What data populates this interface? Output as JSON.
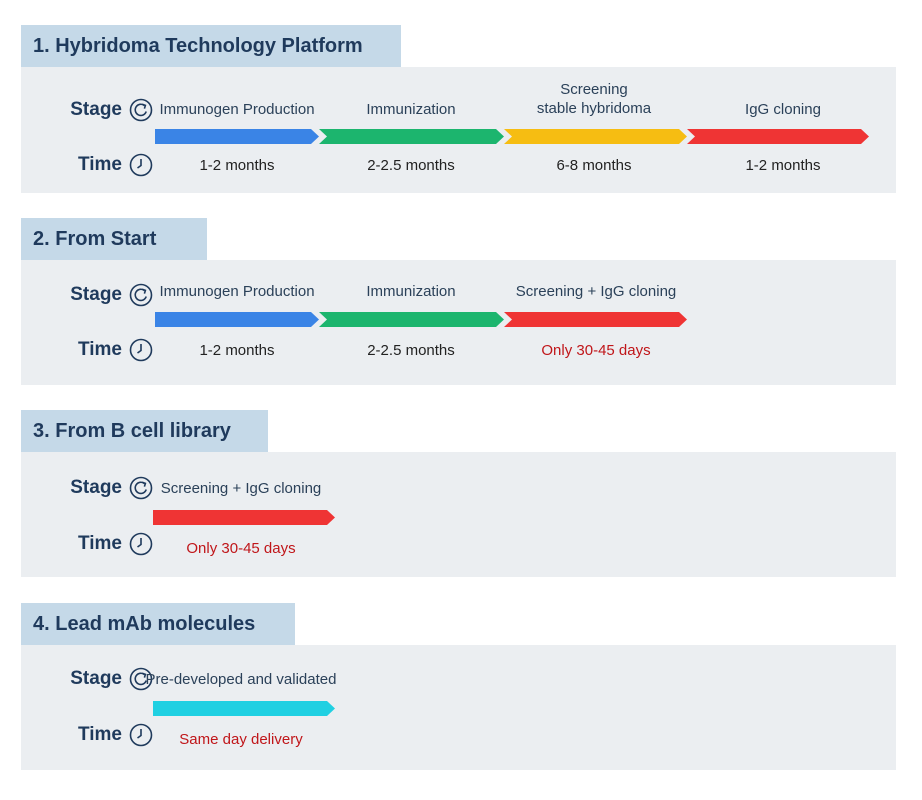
{
  "labels": {
    "stage": "Stage",
    "time": "Time"
  },
  "colors": {
    "blue": "#3a84e6",
    "green": "#1cb56e",
    "yellow": "#f6bd12",
    "red": "#ef3434",
    "cyan": "#20d0e2",
    "highlight_text": "#c0161a"
  },
  "sections": [
    {
      "title": "1. Hybridoma Technology Platform",
      "stages": [
        {
          "name": "Immunogen Production",
          "time": "1-2 months",
          "color": "blue"
        },
        {
          "name": "Immunization",
          "time": "2-2.5 months",
          "color": "green"
        },
        {
          "name": "Screening\nstable hybridoma",
          "time": "6-8 months",
          "color": "yellow"
        },
        {
          "name": "IgG cloning",
          "time": "1-2 months",
          "color": "red"
        }
      ]
    },
    {
      "title": "2. From Start",
      "stages": [
        {
          "name": "Immunogen Production",
          "time": "1-2 months",
          "color": "blue"
        },
        {
          "name": "Immunization",
          "time": "2-2.5 months",
          "color": "green"
        },
        {
          "name": "Screening + IgG cloning",
          "time": "Only 30-45 days",
          "color": "red",
          "highlight": true
        }
      ]
    },
    {
      "title": "3. From B cell library",
      "stages": [
        {
          "name": "Screening + IgG cloning",
          "time": "Only 30-45 days",
          "color": "red",
          "highlight": true
        }
      ]
    },
    {
      "title": "4. Lead mAb molecules",
      "stages": [
        {
          "name": "Pre-developed and validated",
          "time": "Same day delivery",
          "color": "cyan",
          "highlight": true
        }
      ]
    }
  ]
}
